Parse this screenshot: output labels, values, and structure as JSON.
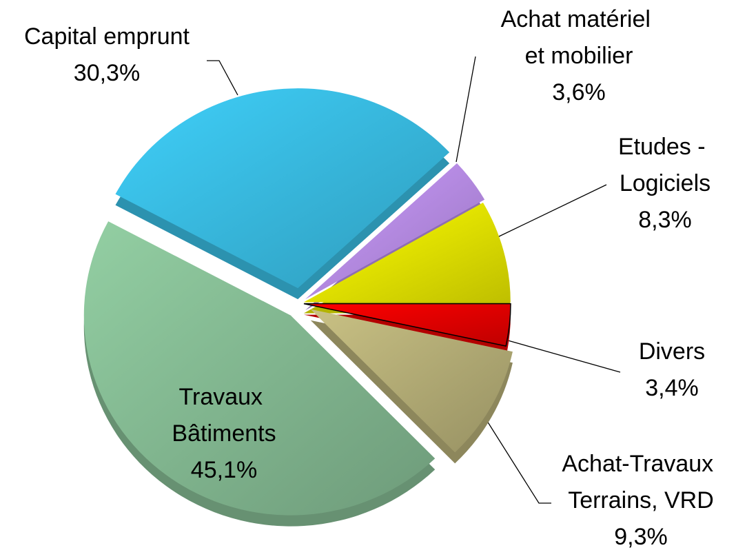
{
  "chart_data": {
    "type": "pie",
    "categories": [
      "Divers",
      "Achat-Travaux Terrains, VRD",
      "Travaux Bâtiments",
      "Capital emprunt",
      "Achat matériel et mobilier",
      "Etudes - Logiciels"
    ],
    "values": [
      3.4,
      9.3,
      45.1,
      30.3,
      3.6,
      8.3
    ],
    "value_labels": [
      "3,4%",
      "9,3%",
      "45,1%",
      "30,3%",
      "3,6%",
      "8,3%"
    ],
    "colors": [
      "#ff0000",
      "#c9c184",
      "#93cfa3",
      "#3fd0fa",
      "#cc9cff",
      "#ffff00"
    ]
  }
}
